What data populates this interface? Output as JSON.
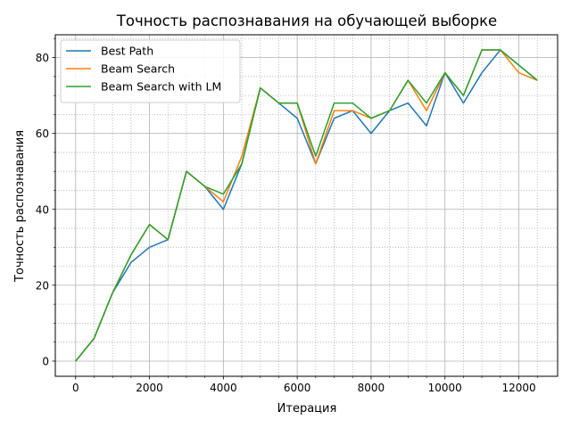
{
  "chart_data": {
    "type": "line",
    "title": "Точность распознавания на обучающей выборке",
    "xlabel": "Итерация",
    "ylabel": "Точность распознавания",
    "xlim": [
      -550,
      13050
    ],
    "ylim": [
      -4,
      86
    ],
    "x_ticks": [
      0,
      2000,
      4000,
      6000,
      8000,
      10000,
      12000
    ],
    "y_ticks": [
      0,
      20,
      40,
      60,
      80
    ],
    "grid": true,
    "legend_position": "top-left",
    "x": [
      0,
      500,
      1000,
      1500,
      2000,
      2500,
      3000,
      3500,
      4000,
      4500,
      5000,
      5500,
      6000,
      6500,
      7000,
      7500,
      8000,
      8500,
      9000,
      9500,
      10000,
      10500,
      11000,
      11500,
      12000,
      12500
    ],
    "series": [
      {
        "name": "Best Path",
        "color": "#1f77b4",
        "values": [
          0,
          6,
          18,
          26,
          30,
          32,
          50,
          46,
          40,
          52,
          72,
          68,
          64,
          52,
          64,
          66,
          60,
          66,
          68,
          62,
          76,
          68,
          76,
          82,
          78,
          74
        ]
      },
      {
        "name": "Beam Search",
        "color": "#ff7f0e",
        "values": [
          0,
          6,
          18,
          28,
          36,
          32,
          50,
          46,
          42,
          54,
          72,
          68,
          68,
          52,
          66,
          66,
          64,
          66,
          74,
          66,
          76,
          70,
          82,
          82,
          76,
          74
        ]
      },
      {
        "name": "Beam Search with LM",
        "color": "#2ca02c",
        "values": [
          0,
          6,
          18,
          28,
          36,
          32,
          50,
          46,
          44,
          52,
          72,
          68,
          68,
          54,
          68,
          68,
          64,
          66,
          74,
          68,
          76,
          70,
          82,
          82,
          78,
          74
        ]
      }
    ]
  }
}
